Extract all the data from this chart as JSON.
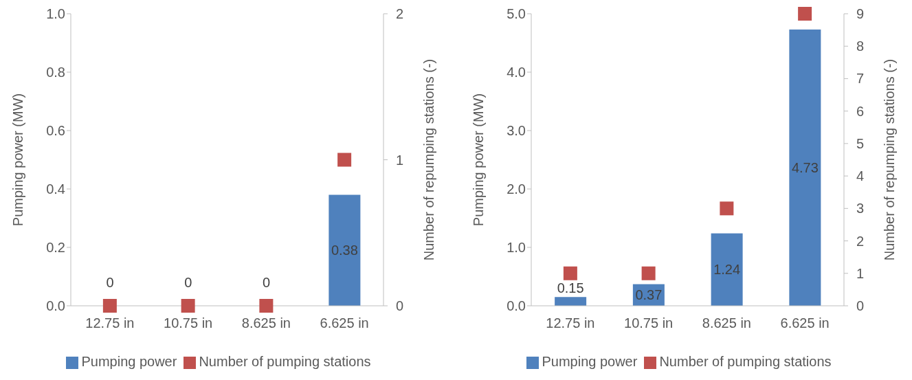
{
  "chart_data": [
    {
      "type": "bar",
      "categories": [
        "12.75 in",
        "10.75 in",
        "8.625 in",
        "6.625 in"
      ],
      "ylabel": "Pumping power (MW)",
      "y2label": "Number of repumping stations (-)",
      "ylim": [
        0,
        1
      ],
      "yticks": [
        {
          "value": 0,
          "label": "0.0"
        },
        {
          "value": 0.2,
          "label": "0.2"
        },
        {
          "value": 0.4,
          "label": "0.4"
        },
        {
          "value": 0.6,
          "label": "0.6"
        },
        {
          "value": 0.8,
          "label": "0.8"
        },
        {
          "value": 1,
          "label": "1.0"
        }
      ],
      "y2lim": [
        0,
        2
      ],
      "y2ticks": [
        0,
        1,
        2
      ],
      "legend": "bottom",
      "grid": false,
      "marker": "square",
      "series": [
        {
          "name": "Pumping power",
          "color": "#4f81bd",
          "values": [
            0,
            0,
            0,
            0.38
          ],
          "value_labels": [
            "0",
            "0",
            "0",
            "0.38"
          ]
        },
        {
          "name": "Number of pumping stations",
          "type": "scatter",
          "axis": "y2",
          "color": "#c0504d",
          "values": [
            0,
            0,
            0,
            1
          ]
        }
      ]
    },
    {
      "type": "bar",
      "categories": [
        "12.75 in",
        "10.75 in",
        "8.625 in",
        "6.625 in"
      ],
      "ylabel": "Pumping power (MW)",
      "y2label": "Number of repumping stations (-)",
      "ylim": [
        0,
        5
      ],
      "yticks": [
        {
          "value": 0,
          "label": "0.0"
        },
        {
          "value": 1,
          "label": "1.0"
        },
        {
          "value": 2,
          "label": "2.0"
        },
        {
          "value": 3,
          "label": "3.0"
        },
        {
          "value": 4,
          "label": "4.0"
        },
        {
          "value": 5,
          "label": "5.0"
        }
      ],
      "y2lim": [
        0,
        9
      ],
      "y2ticks": [
        0,
        1,
        2,
        3,
        4,
        5,
        6,
        7,
        8,
        9
      ],
      "legend": "bottom",
      "grid": false,
      "marker": "square",
      "series": [
        {
          "name": "Pumping power",
          "color": "#4f81bd",
          "values": [
            0.15,
            0.37,
            1.24,
            4.73
          ],
          "value_labels": [
            "0.15",
            "0.37",
            "1.24",
            "4.73"
          ]
        },
        {
          "name": "Number of pumping stations",
          "type": "scatter",
          "axis": "y2",
          "color": "#c0504d",
          "values": [
            1,
            1,
            3,
            9
          ]
        }
      ]
    }
  ]
}
